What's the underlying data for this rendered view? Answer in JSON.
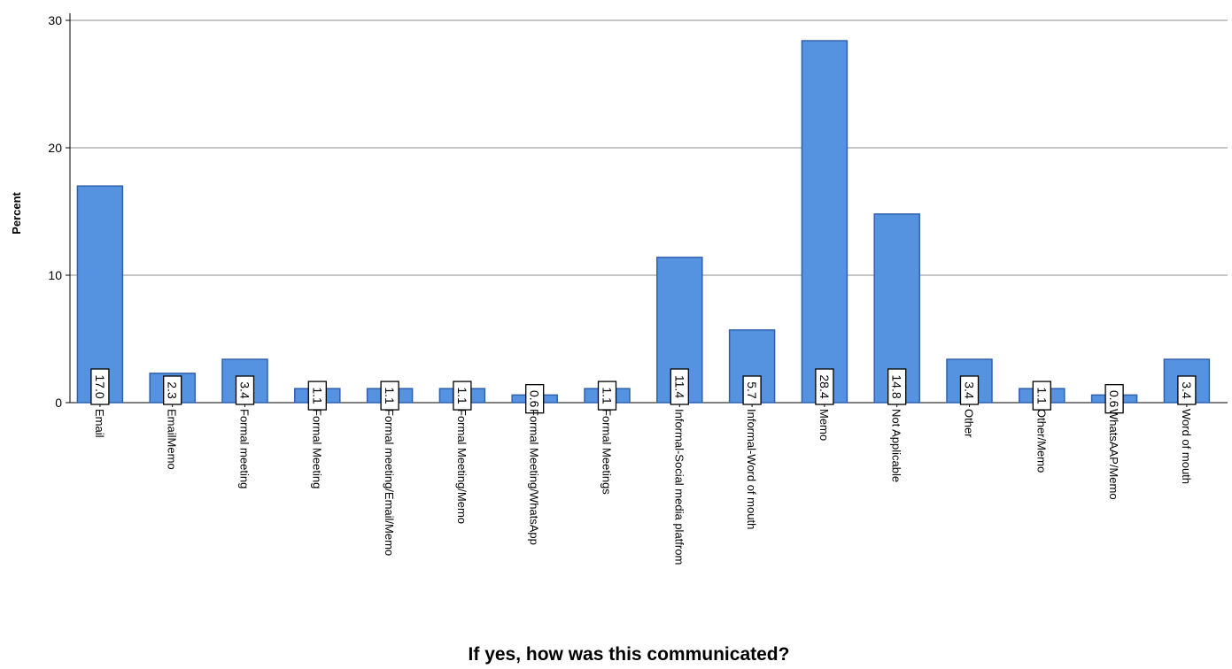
{
  "chart_data": {
    "type": "bar",
    "xlabel": "If yes, how was this communicated?",
    "ylabel": "Percent",
    "ylim": [
      0,
      30
    ],
    "yticks": [
      0,
      10,
      20,
      30
    ],
    "grid": true,
    "bar_color": "#5592e0",
    "bar_edge_color": "#2f62ad",
    "categories": [
      "Email",
      "EmailMemo",
      "Formal meeting",
      "Formal Meeting",
      "Formal meeting/Email/Memo",
      "Formal Meeting/Memo",
      "Formal Meeting/WhatsApp",
      "Formal Meetings",
      "Informal-Social media platfrom",
      "Informal-Word of mouth",
      "Memo",
      "Not Applicable",
      "Other",
      "Other/Memo",
      "WhatsAAP/Memo",
      "Word of mouth"
    ],
    "values": [
      17.0,
      2.3,
      3.4,
      1.1,
      1.1,
      1.1,
      0.6,
      1.1,
      11.4,
      5.7,
      28.4,
      14.8,
      3.4,
      1.1,
      0.6,
      3.4
    ],
    "data_labels": [
      "17.0",
      "2.3",
      "3.4",
      "1.1",
      "1.1",
      "1.1",
      "0.6",
      "1.1",
      "11.4",
      "5.7",
      "28.4",
      "14.8",
      "3.4",
      "1.1",
      "0.6",
      "3.4"
    ]
  }
}
